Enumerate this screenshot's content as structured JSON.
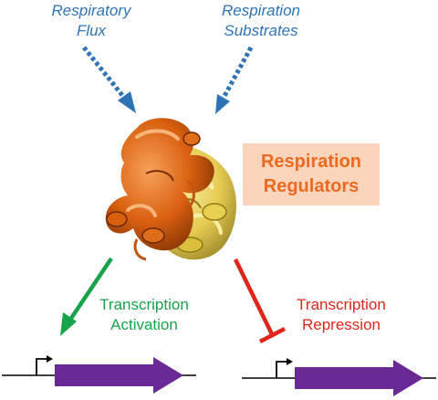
{
  "labels": {
    "respiratory_flux": [
      "Respiratory",
      "Flux"
    ],
    "respiration_substrates": [
      "Respiration",
      "Substrates"
    ],
    "regulators": [
      "Respiration",
      "Regulators"
    ],
    "activation": [
      "Transcription",
      "Activation"
    ],
    "repression": [
      "Transcription",
      "Repression"
    ]
  },
  "colors": {
    "input_arrows": "#2e74b5",
    "activation": "#16a34a",
    "repression": "#e1251b",
    "regulator_text": "#ec6a1f",
    "regulator_box": "#fbd5bb",
    "gene": "#6a2a96",
    "protein_primary": "#d9600f",
    "protein_secondary": "#e8cf4f"
  },
  "icons": {
    "protein": "protein-ribbon-structure",
    "promoter": "promoter-bent-arrow-icon",
    "gene": "gene-block-arrow"
  }
}
